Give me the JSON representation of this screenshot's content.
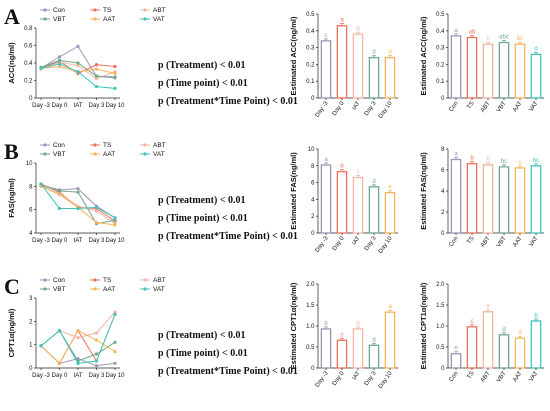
{
  "colors": {
    "Con": "#9b96b8",
    "TS": "#f0705a",
    "ABT": "#f4b5a5",
    "VBT": "#6fa88f",
    "AAT": "#f5b45e",
    "VAT": "#3fc5b9"
  },
  "panels": [
    {
      "letter": "A",
      "pvalues": [
        "p (Treatment) < 0.01",
        "p (Time point) < 0.01",
        "p (Treatment*Time Point) < 0.01"
      ],
      "line": {
        "ylabel": "ACC(ng/ml)",
        "ylim": [
          0,
          0.8
        ],
        "yticks": [
          0,
          0.2,
          0.4,
          0.6,
          0.8
        ],
        "x": [
          "Day -3",
          "Day 0",
          "IAT",
          "Day 3",
          "Day 10"
        ],
        "series": [
          {
            "name": "Con",
            "values": [
              0.34,
              0.47,
              0.59,
              0.25,
              0.24
            ]
          },
          {
            "name": "TS",
            "values": [
              0.34,
              0.42,
              0.28,
              0.38,
              0.36
            ]
          },
          {
            "name": "ABT",
            "values": [
              0.33,
              0.41,
              0.37,
              0.22,
              0.3
            ]
          },
          {
            "name": "VBT",
            "values": [
              0.35,
              0.43,
              0.4,
              0.25,
              0.23
            ]
          },
          {
            "name": "AAT",
            "values": [
              0.34,
              0.36,
              0.3,
              0.33,
              0.28
            ]
          },
          {
            "name": "VAT",
            "values": [
              0.34,
              0.39,
              0.3,
              0.13,
              0.11
            ]
          }
        ]
      },
      "time_bar": {
        "ylabel": "Estimated ACC(ng/ml)",
        "ylim": [
          0,
          0.5
        ],
        "yticks": [
          0,
          0.1,
          0.2,
          0.3,
          0.4,
          0.5
        ],
        "categories": [
          "Day -3",
          "Day 0",
          "IAT",
          "Day 3",
          "Day 10"
        ],
        "values": [
          0.34,
          0.43,
          0.38,
          0.24,
          0.24
        ],
        "labels": [
          "c",
          "a",
          "b",
          "d",
          "d"
        ],
        "colors": [
          "#9b96b8",
          "#f0705a",
          "#f4b5a5",
          "#6fa88f",
          "#f5b45e"
        ]
      },
      "group_bar": {
        "ylabel": "Estimated ACC(ng/ml)",
        "ylim": [
          0,
          0.5
        ],
        "yticks": [
          0,
          0.1,
          0.2,
          0.3,
          0.4,
          0.5
        ],
        "categories": [
          "Con",
          "TS",
          "ABT",
          "VBT",
          "AAT",
          "VAT"
        ],
        "values": [
          0.37,
          0.36,
          0.32,
          0.33,
          0.32,
          0.26
        ],
        "labels": [
          "a",
          "ab",
          "c",
          "abc",
          "bc",
          "d"
        ],
        "colors": [
          "#9b96b8",
          "#f0705a",
          "#f4b5a5",
          "#6fa88f",
          "#f5b45e",
          "#3fc5b9"
        ]
      }
    },
    {
      "letter": "B",
      "pvalues": [
        "p (Treatment) < 0.01",
        "p (Time point) < 0.01",
        "p (Treatment*Time Point) < 0.01"
      ],
      "line": {
        "ylabel": "FAS(ng/ml)",
        "ylim": [
          4,
          10
        ],
        "yticks": [
          4,
          6,
          8,
          10
        ],
        "x": [
          "Day -3",
          "Day 0",
          "IAT",
          "Day 3",
          "Day 10"
        ],
        "series": [
          {
            "name": "Con",
            "values": [
              8.1,
              7.7,
              7.8,
              6.3,
              5.3
            ]
          },
          {
            "name": "TS",
            "values": [
              8.2,
              7.5,
              6.2,
              6.1,
              5.0
            ]
          },
          {
            "name": "ABT",
            "values": [
              8.0,
              7.4,
              6.3,
              5.9,
              4.8
            ]
          },
          {
            "name": "VBT",
            "values": [
              8.1,
              7.6,
              7.5,
              4.8,
              5.1
            ]
          },
          {
            "name": "AAT",
            "values": [
              8.0,
              7.3,
              6.2,
              4.9,
              4.7
            ]
          },
          {
            "name": "VAT",
            "values": [
              8.2,
              6.1,
              6.1,
              6.2,
              5.3
            ]
          }
        ]
      },
      "time_bar": {
        "ylabel": "Estimated FAS(ng/ml)",
        "ylim": [
          0,
          10
        ],
        "yticks": [
          0,
          2,
          4,
          6,
          8,
          10
        ],
        "categories": [
          "Day -3",
          "Day 0",
          "IAT",
          "Day 3",
          "Day 10"
        ],
        "values": [
          8.1,
          7.3,
          6.6,
          5.5,
          4.8
        ],
        "labels": [
          "a",
          "b",
          "c",
          "d",
          "e"
        ],
        "colors": [
          "#9b96b8",
          "#f0705a",
          "#f4b5a5",
          "#6fa88f",
          "#f5b45e"
        ]
      },
      "group_bar": {
        "ylabel": "Estimated FAS(ng/ml)",
        "ylim": [
          0,
          8
        ],
        "yticks": [
          0,
          2,
          4,
          6,
          8
        ],
        "categories": [
          "Con",
          "TS",
          "ABT",
          "VBT",
          "AAT",
          "VAT"
        ],
        "values": [
          7.0,
          6.6,
          6.5,
          6.3,
          6.2,
          6.4
        ],
        "labels": [
          "a",
          "b",
          "b",
          "bc",
          "c",
          "bc"
        ],
        "colors": [
          "#9b96b8",
          "#f0705a",
          "#f4b5a5",
          "#6fa88f",
          "#f5b45e",
          "#3fc5b9"
        ]
      }
    },
    {
      "letter": "C",
      "pvalues": [
        "p (Treatment) < 0.01",
        "p (Time point) < 0.01",
        "p (Treatment*Time Point) < 0.01"
      ],
      "line": {
        "ylabel": "CPT1α(ng/ml)",
        "ylim": [
          0,
          3
        ],
        "yticks": [
          0,
          1,
          2,
          3
        ],
        "x": [
          "Day -3",
          "Day 0",
          "IAT",
          "Day 3",
          "Day 10"
        ],
        "series": [
          {
            "name": "Con",
            "values": [
              0.95,
              0.2,
              0.4,
              0.1,
              0.2
            ]
          },
          {
            "name": "TS",
            "values": [
              0.95,
              0.2,
              1.6,
              0.3,
              2.3
            ]
          },
          {
            "name": "ABT",
            "values": [
              0.95,
              1.6,
              1.3,
              1.5,
              2.4
            ]
          },
          {
            "name": "VBT",
            "values": [
              0.95,
              1.6,
              0.3,
              0.6,
              1.1
            ]
          },
          {
            "name": "AAT",
            "values": [
              0.95,
              0.2,
              1.6,
              1.2,
              0.7
            ]
          },
          {
            "name": "VAT",
            "values": [
              0.95,
              1.6,
              0.2,
              0.3,
              2.3
            ]
          }
        ]
      },
      "time_bar": {
        "ylabel": "Estimated CPT1α(ng/ml)",
        "ylim": [
          0,
          2.0
        ],
        "yticks": [
          0,
          0.5,
          1.0,
          1.5,
          2.0
        ],
        "ytick_labels": [
          "0",
          "0.5",
          "1.0",
          "1.5",
          "2.0"
        ],
        "categories": [
          "Day -3",
          "Day 0",
          "IAT",
          "Day 3",
          "Day 10"
        ],
        "values": [
          0.93,
          0.66,
          0.93,
          0.54,
          1.33
        ],
        "labels": [
          "b",
          "c",
          "b",
          "d",
          "a"
        ],
        "colors": [
          "#9b96b8",
          "#f0705a",
          "#f4b5a5",
          "#6fa88f",
          "#f5b45e"
        ]
      },
      "group_bar": {
        "ylabel": "Estimated CPT1α(ng/ml)",
        "ylim": [
          0,
          2.0
        ],
        "yticks": [
          0,
          0.5,
          1.0,
          1.5,
          2.0
        ],
        "ytick_labels": [
          "0",
          "0.5",
          "1.0",
          "1.5",
          "2.0"
        ],
        "categories": [
          "Con",
          "TS",
          "ABT",
          "VBT",
          "AAT",
          "VAT"
        ],
        "values": [
          0.34,
          0.98,
          1.34,
          0.79,
          0.71,
          1.12
        ],
        "labels": [
          "e",
          "c",
          "a",
          "d",
          "d",
          "b"
        ],
        "colors": [
          "#9b96b8",
          "#f0705a",
          "#f4b5a5",
          "#6fa88f",
          "#f5b45e",
          "#3fc5b9"
        ]
      }
    }
  ]
}
